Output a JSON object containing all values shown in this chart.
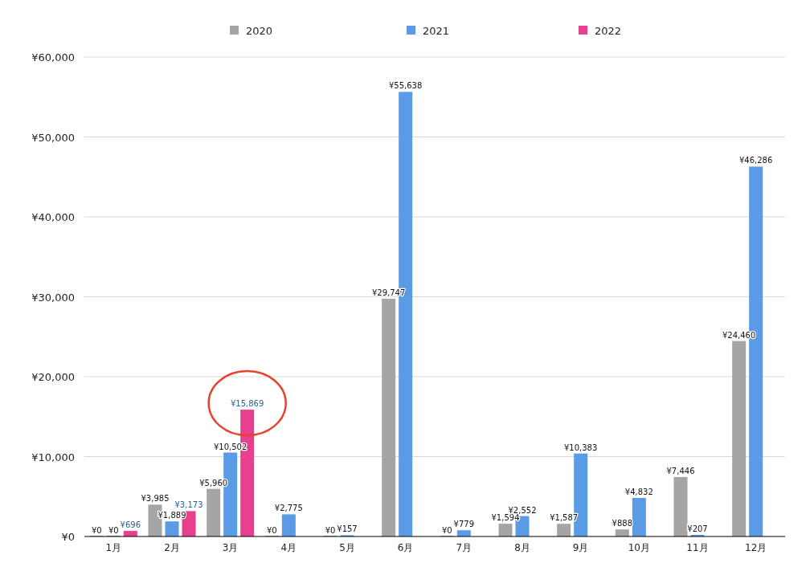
{
  "chart_data": {
    "type": "bar",
    "categories": [
      "1月",
      "2月",
      "3月",
      "4月",
      "5月",
      "6月",
      "7月",
      "8月",
      "9月",
      "10月",
      "11月",
      "12月"
    ],
    "series": [
      {
        "name": "2020",
        "color": "#a5a5a5",
        "values": [
          0,
          3985,
          5960,
          0,
          0,
          29747,
          0,
          1594,
          1587,
          888,
          7446,
          24460
        ],
        "value_labels": [
          "¥0",
          "¥3,985",
          "¥5,960",
          "¥0",
          "¥0",
          "¥29,747",
          "¥0",
          "¥1,594",
          "¥1,587",
          "¥888",
          "¥7,446",
          "¥24,460"
        ]
      },
      {
        "name": "2021",
        "color": "#5b9be6",
        "values": [
          0,
          1889,
          10502,
          2775,
          157,
          55638,
          779,
          2552,
          10383,
          4832,
          207,
          46286
        ],
        "value_labels": [
          "¥0",
          "¥1,889",
          "¥10,502",
          "¥2,775",
          "¥157",
          "¥55,638",
          "¥779",
          "¥2,552",
          "¥10,383",
          "¥4,832",
          "¥207",
          "¥46,286"
        ]
      },
      {
        "name": "2022",
        "color": "#e8408f",
        "values": [
          696,
          3173,
          15869,
          null,
          null,
          null,
          null,
          null,
          null,
          null,
          null,
          null
        ],
        "value_labels": [
          "¥696",
          "¥3,173",
          "¥15,869",
          null,
          null,
          null,
          null,
          null,
          null,
          null,
          null,
          null
        ]
      }
    ],
    "ylim": [
      0,
      60000
    ],
    "yticks": [
      {
        "value": 0,
        "label": "¥0"
      },
      {
        "value": 10000,
        "label": "¥10,000"
      },
      {
        "value": 20000,
        "label": "¥20,000"
      },
      {
        "value": 30000,
        "label": "¥30,000"
      },
      {
        "value": 40000,
        "label": "¥40,000"
      },
      {
        "value": 50000,
        "label": "¥50,000"
      },
      {
        "value": 60000,
        "label": "¥60,000"
      }
    ],
    "grid": "y",
    "legend": "top"
  }
}
